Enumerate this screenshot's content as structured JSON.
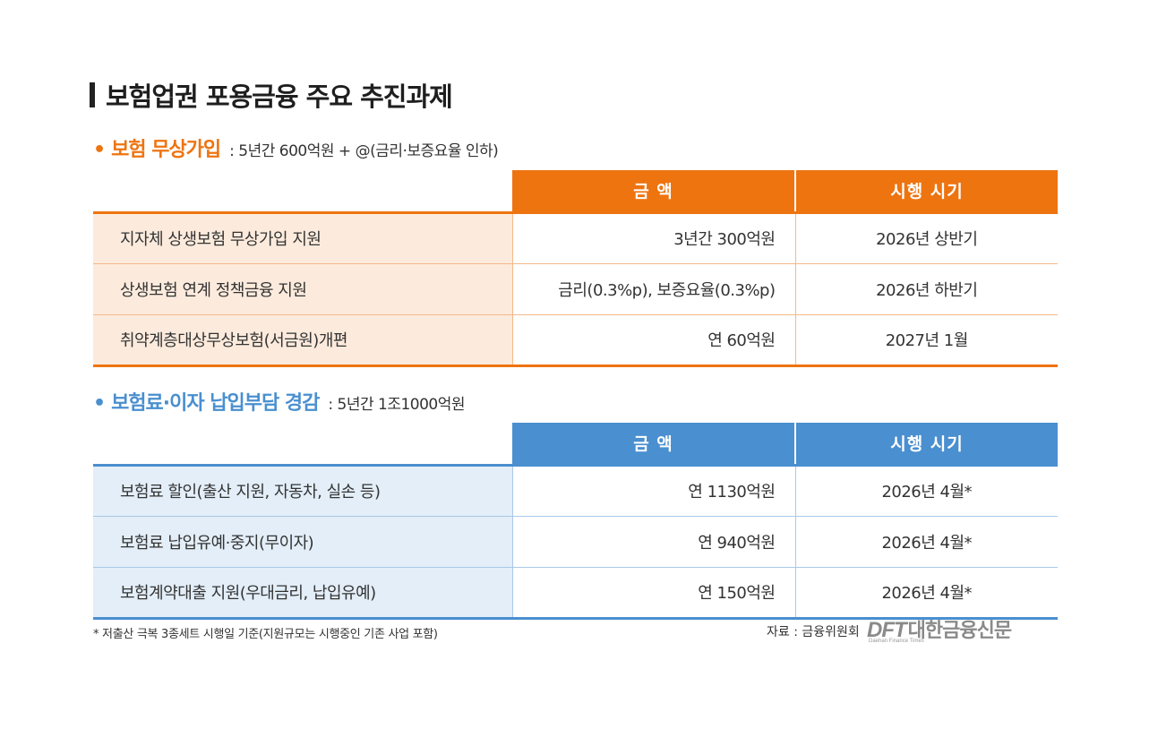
{
  "title": "보험업권 포용금융 주요 추진과제",
  "section1": {
    "bullet": "•",
    "name": "보험 무상가입",
    "summary": ": 5년간 600억원 + @(금리·보증요율 인하)",
    "headers": {
      "amount": "금  액",
      "period": "시행 시기"
    },
    "rows": [
      {
        "label": "지자체 상생보험 무상가입 지원",
        "amount": "3년간 300억원",
        "period": "2026년 상반기"
      },
      {
        "label": "상생보험 연계 정책금융 지원",
        "amount": "금리(0.3%p), 보증요율(0.3%p)",
        "period": "2026년 하반기"
      },
      {
        "label": "취약계층대상무상보험(서금원)개편",
        "amount": "연 60억원",
        "period": "2027년 1월"
      }
    ],
    "color": "#ee7410"
  },
  "section2": {
    "bullet": "•",
    "name": "보험료·이자 납입부담 경감",
    "summary": ": 5년간 1조1000억원",
    "headers": {
      "amount": "금  액",
      "period": "시행 시기"
    },
    "rows": [
      {
        "label": "보험료 할인(출산 지원, 자동차, 실손 등)",
        "amount": "연 1130억원",
        "period": "2026년 4월*"
      },
      {
        "label": "보험료 납입유예·중지(무이자)",
        "amount": "연 940억원",
        "period": "2026년 4월*"
      },
      {
        "label": "보험계약대출 지원(우대금리, 납입유예)",
        "amount": "연 150억원",
        "period": "2026년 4월*"
      }
    ],
    "color": "#4a8fcf"
  },
  "footnote": "* 저출산 극복 3종세트 시행일 기준(지원규모는 시행중인 기존 사업 포함)",
  "source": "자료 : 금융위원회",
  "logo": {
    "latin": "DFT",
    "korean": "대한금융신문",
    "tagline": "Daehan Finance Times"
  }
}
